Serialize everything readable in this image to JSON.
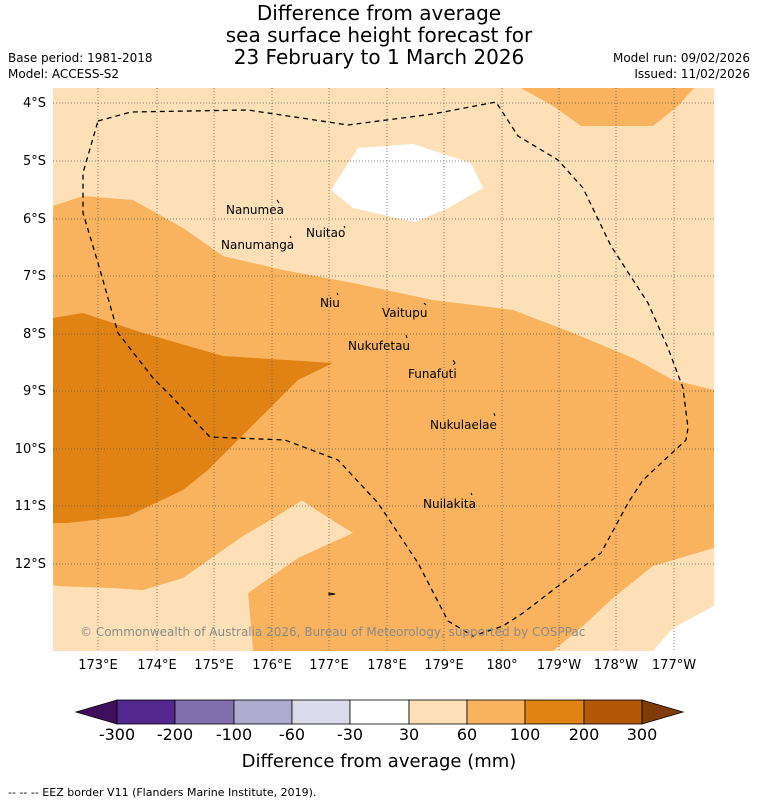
{
  "header": {
    "title_lines": [
      "Difference from average",
      "sea surface height forecast for",
      "23 February to 1 March 2026"
    ],
    "base_period": "Base period: 1981-2018",
    "model": "Model: ACCESS-S2",
    "model_run": "Model run: 09/02/2026",
    "issued": "Issued: 11/02/2026"
  },
  "map": {
    "lat_labels": [
      "4°S",
      "5°S",
      "6°S",
      "7°S",
      "8°S",
      "9°S",
      "10°S",
      "11°S",
      "12°S"
    ],
    "lon_labels": [
      "173°E",
      "174°E",
      "175°E",
      "176°E",
      "177°E",
      "178°E",
      "179°E",
      "180°",
      "179°W",
      "178°W",
      "177°W"
    ],
    "places": [
      {
        "name": "Nanumea"
      },
      {
        "name": "Nuitao"
      },
      {
        "name": "Nanumanga"
      },
      {
        "name": "Niu"
      },
      {
        "name": "Vaitupu"
      },
      {
        "name": "Nukufetau"
      },
      {
        "name": "Funafuti"
      },
      {
        "name": "Nukulaelae"
      },
      {
        "name": "Nuilakita"
      }
    ],
    "watermark": "© Commonwealth of Australia 2026, Bureau of Meteorology, supported by COSPPac"
  },
  "colorbar": {
    "ticks": [
      "-300",
      "-200",
      "-100",
      "-60",
      "-30",
      "30",
      "60",
      "100",
      "200",
      "300"
    ],
    "colors": [
      "#3f0f5e",
      "#54278f",
      "#7f6fad",
      "#aeaad0",
      "#dadaeb",
      "#ffffff",
      "#fde0b8",
      "#f9b35e",
      "#e08214",
      "#b35806",
      "#7f3b08"
    ],
    "label": "Difference from average (mm)"
  },
  "palette": {
    "level_30_60": "#fde0b8",
    "level_60_100": "#f9b35e",
    "level_100_200": "#e08214",
    "level_200_300": "#b35806",
    "neutral": "#ffffff"
  },
  "footer": {
    "eez_note": "-- -- -- EEZ border V11 (Flanders Marine Institute, 2019)."
  }
}
